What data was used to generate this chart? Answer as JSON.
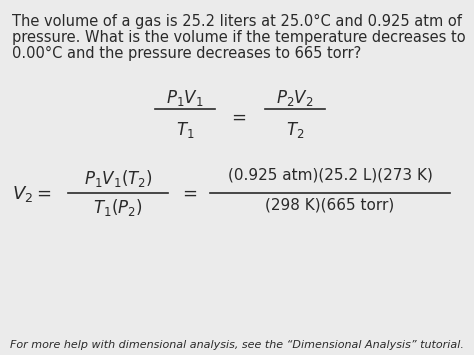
{
  "bg_color": "#ebebeb",
  "text_color": "#2a2a2a",
  "title_line1": "The volume of a gas is 25.2 liters at 25.0°C and 0.925 atm of",
  "title_line2": "pressure. What is the volume if the temperature decreases to",
  "title_line3": "0.00°C and the pressure decreases to 665 torr?",
  "formula1_num_left": "$P_1V_1$",
  "formula1_den_left": "$T_1$",
  "formula1_num_right": "$P_2V_2$",
  "formula1_den_right": "$T_2$",
  "formula2_num_left": "$P_1V_1(T_2)$",
  "formula2_den_left": "$T_1(P_2)$",
  "formula2_num_right": "(0.925 atm)(25.2 L)(273 K)",
  "formula2_den_right": "(298 K)(665 torr)",
  "footer": "For more help with dimensional analysis, see the “Dimensional Analysis” tutorial.",
  "line_color": "#2a2a2a",
  "font_size_body": 10.5,
  "font_size_formula": 12,
  "font_size_formula2": 11,
  "font_size_footer": 8
}
